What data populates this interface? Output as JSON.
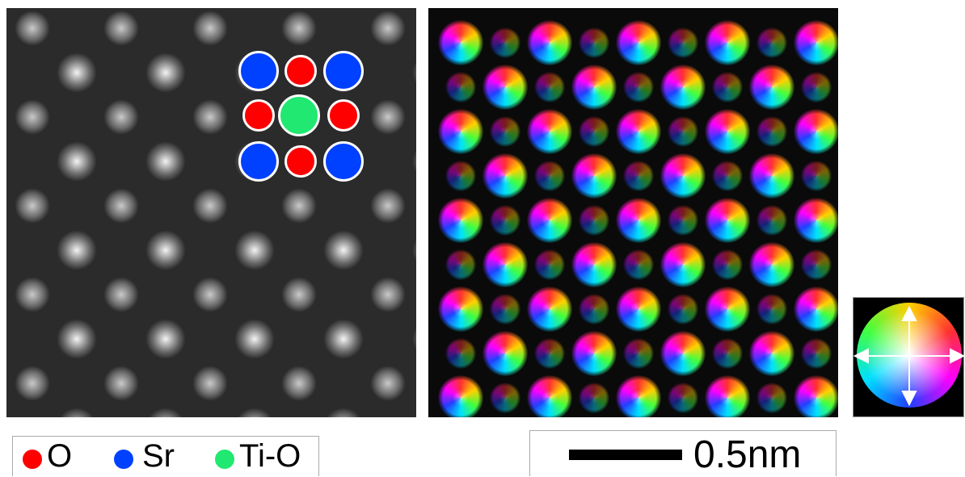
{
  "legend": [
    {
      "label": "O",
      "color": "#ff0000"
    },
    {
      "label": "Sr",
      "color": "#0040ff"
    },
    {
      "label": "Ti-O",
      "color": "#20e870"
    }
  ],
  "scale_bar": {
    "label": "0.5nm"
  }
}
